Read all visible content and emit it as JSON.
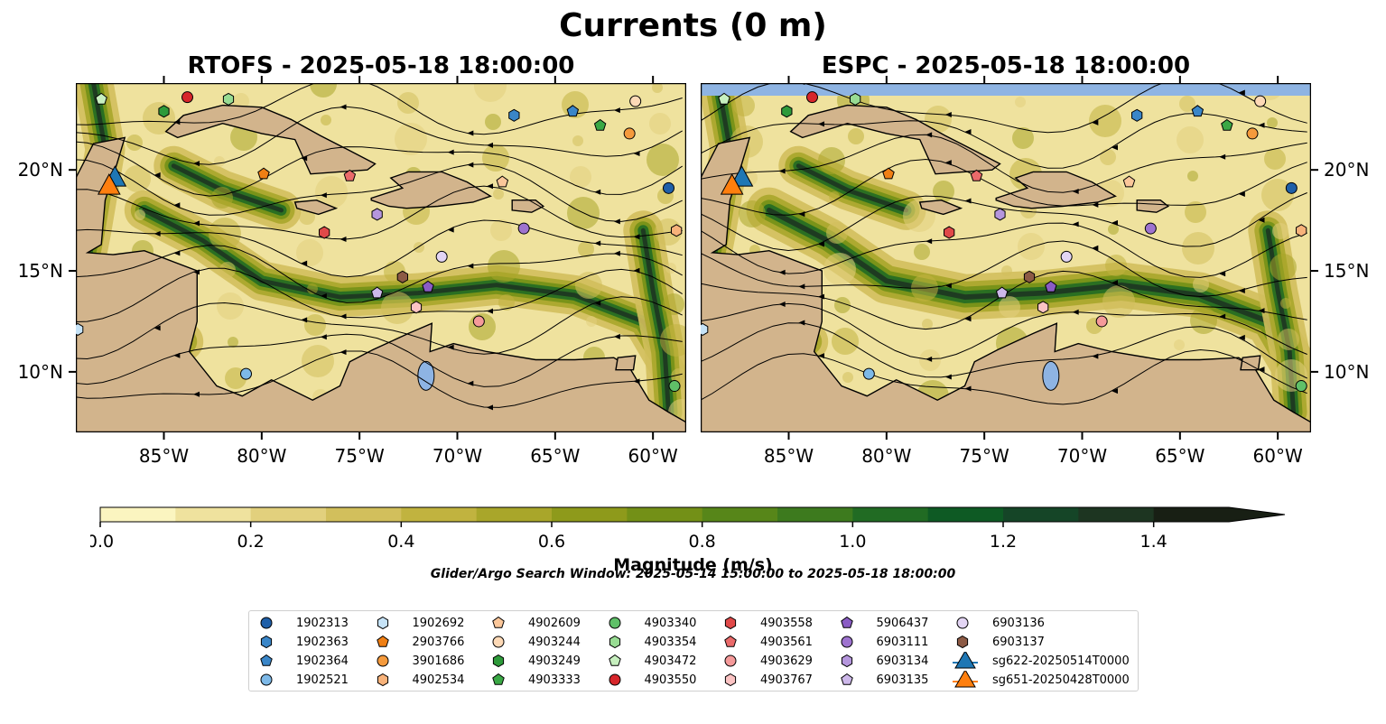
{
  "suptitle": "Currents (0 m)",
  "panels": [
    {
      "title": "RTOFS - 2025-05-18 18:00:00"
    },
    {
      "title": "ESPC - 2025-05-18 18:00:00"
    }
  ],
  "colors": {
    "land": "#d2b48c",
    "water_blue": "#8eb4e3",
    "colormap": [
      "#fbf5c0",
      "#efe29e",
      "#e2d07d",
      "#d2bf5c",
      "#c1b33f",
      "#a9a62a",
      "#8e9a1b",
      "#739017",
      "#578619",
      "#3d7a1e",
      "#216b23",
      "#0e5a24",
      "#154527",
      "#1d3521",
      "#181f14"
    ]
  },
  "chart_data": [
    {
      "type": "map",
      "name": "RTOFS",
      "title": "RTOFS - 2025-05-18 18:00:00",
      "xlim": [
        -89.5,
        -58.3
      ],
      "ylim": [
        7.0,
        24.3
      ],
      "xticks": [
        -85,
        -80,
        -75,
        -70,
        -65,
        -60
      ],
      "yticks": [
        10,
        15,
        20
      ],
      "xtick_labels": [
        "85°W",
        "80°W",
        "75°W",
        "70°W",
        "65°W",
        "60°W"
      ],
      "ytick_labels": [
        "10°N",
        "15°N",
        "20°N"
      ]
    },
    {
      "type": "map",
      "name": "ESPC",
      "title": "ESPC - 2025-05-18 18:00:00",
      "xlim": [
        -89.5,
        -58.3
      ],
      "ylim": [
        7.0,
        24.3
      ],
      "xticks": [
        -85,
        -80,
        -75,
        -70,
        -65,
        -60
      ],
      "yticks": [
        10,
        15,
        20
      ],
      "xtick_labels": [
        "85°W",
        "80°W",
        "75°W",
        "70°W",
        "65°W",
        "60°W"
      ],
      "ytick_labels": [
        "10°N",
        "15°N",
        "20°N"
      ]
    }
  ],
  "colorbar": {
    "label": "Magnitude (m/s)",
    "min": 0.0,
    "max": 1.5,
    "step": 0.1,
    "ticks": [
      0.0,
      0.2,
      0.4,
      0.6,
      0.8,
      1.0,
      1.2,
      1.4
    ],
    "tick_labels": [
      "0.0",
      "0.2",
      "0.4",
      "0.6",
      "0.8",
      "1.0",
      "1.2",
      "1.4"
    ],
    "extend": "max"
  },
  "search_window": "Glider/Argo Search Window: 2025-05-14 15:00:00 to 2025-05-18 18:00:00",
  "legend": {
    "placement": "bottom-center",
    "entries": [
      {
        "label": "1902313",
        "marker": "circle",
        "color": "#1f5fa8"
      },
      {
        "label": "1902363",
        "marker": "hexagon",
        "color": "#3a86c8"
      },
      {
        "label": "1902364",
        "marker": "pentagon",
        "color": "#3a86c8"
      },
      {
        "label": "1902521",
        "marker": "circle",
        "color": "#7db9e8"
      },
      {
        "label": "1902692",
        "marker": "hexagon",
        "color": "#c6e3f7"
      },
      {
        "label": "2903766",
        "marker": "pentagon",
        "color": "#f07f14"
      },
      {
        "label": "3901686",
        "marker": "circle",
        "color": "#f59a3c"
      },
      {
        "label": "4902534",
        "marker": "hexagon",
        "color": "#f7b27a"
      },
      {
        "label": "4902609",
        "marker": "pentagon",
        "color": "#fbc79a"
      },
      {
        "label": "4903244",
        "marker": "circle",
        "color": "#fdd9b6"
      },
      {
        "label": "4903249",
        "marker": "hexagon",
        "color": "#2e9a3a"
      },
      {
        "label": "4903333",
        "marker": "pentagon",
        "color": "#3aa845"
      },
      {
        "label": "4903340",
        "marker": "circle",
        "color": "#5fc068"
      },
      {
        "label": "4903354",
        "marker": "hexagon",
        "color": "#98dc93"
      },
      {
        "label": "4903472",
        "marker": "pentagon",
        "color": "#c7f0bf"
      },
      {
        "label": "4903550",
        "marker": "circle",
        "color": "#d7262b"
      },
      {
        "label": "4903558",
        "marker": "hexagon",
        "color": "#e04949"
      },
      {
        "label": "4903561",
        "marker": "pentagon",
        "color": "#ea6a6a"
      },
      {
        "label": "4903629",
        "marker": "circle",
        "color": "#f59a9a"
      },
      {
        "label": "4903767",
        "marker": "hexagon",
        "color": "#fbc3c3"
      },
      {
        "label": "5906437",
        "marker": "pentagon",
        "color": "#8a5cc4"
      },
      {
        "label": "6903111",
        "marker": "circle",
        "color": "#9e73cf"
      },
      {
        "label": "6903134",
        "marker": "hexagon",
        "color": "#b596dd"
      },
      {
        "label": "6903135",
        "marker": "pentagon",
        "color": "#cdb8ea"
      },
      {
        "label": "6903136",
        "marker": "circle",
        "color": "#e3d5f4"
      },
      {
        "label": "6903137",
        "marker": "hexagon",
        "color": "#8c5a45"
      },
      {
        "label": "sg622-20250514T0000",
        "marker": "triangle",
        "color": "#1f77b4"
      },
      {
        "label": "sg651-20250428T0000",
        "marker": "triangle",
        "color": "#ff7f0e"
      }
    ]
  },
  "points": [
    {
      "id": "4903472",
      "lon": -88.2,
      "lat": 23.5
    },
    {
      "id": "4903550",
      "lon": -83.8,
      "lat": 23.6
    },
    {
      "id": "4903354",
      "lon": -81.7,
      "lat": 23.5
    },
    {
      "id": "4903249",
      "lon": -85.0,
      "lat": 22.9
    },
    {
      "id": "2903766",
      "lon": -79.9,
      "lat": 19.8
    },
    {
      "id": "4903561",
      "lon": -75.5,
      "lat": 19.7
    },
    {
      "id": "6903134",
      "lon": -74.1,
      "lat": 17.8
    },
    {
      "id": "4903558",
      "lon": -76.8,
      "lat": 16.9
    },
    {
      "id": "6903137",
      "lon": -72.8,
      "lat": 14.7
    },
    {
      "id": "5906437",
      "lon": -71.5,
      "lat": 14.2
    },
    {
      "id": "6903135",
      "lon": -74.1,
      "lat": 13.9
    },
    {
      "id": "4903767",
      "lon": -72.1,
      "lat": 13.2
    },
    {
      "id": "4903629",
      "lon": -68.9,
      "lat": 12.5
    },
    {
      "id": "6903136",
      "lon": -70.8,
      "lat": 15.7
    },
    {
      "id": "6903111",
      "lon": -66.6,
      "lat": 17.1
    },
    {
      "id": "3901686",
      "lon": -61.2,
      "lat": 21.8
    },
    {
      "id": "4903244",
      "lon": -60.9,
      "lat": 23.4
    },
    {
      "id": "4903333",
      "lon": -62.7,
      "lat": 22.2
    },
    {
      "id": "1902363",
      "lon": -67.1,
      "lat": 22.7
    },
    {
      "id": "1902364",
      "lon": -64.1,
      "lat": 22.9
    },
    {
      "id": "4902609",
      "lon": -67.7,
      "lat": 19.4
    },
    {
      "id": "1902313",
      "lon": -59.2,
      "lat": 19.1
    },
    {
      "id": "4902534",
      "lon": -58.8,
      "lat": 17.0
    },
    {
      "id": "4903340",
      "lon": -58.9,
      "lat": 9.3
    },
    {
      "id": "1902521",
      "lon": -80.8,
      "lat": 9.9
    },
    {
      "id": "1902692",
      "lon": -89.4,
      "lat": 12.1
    },
    {
      "id": "sg622-20250514T0000",
      "lon": -87.5,
      "lat": 19.6
    },
    {
      "id": "sg651-20250428T0000",
      "lon": -87.8,
      "lat": 19.2
    }
  ]
}
